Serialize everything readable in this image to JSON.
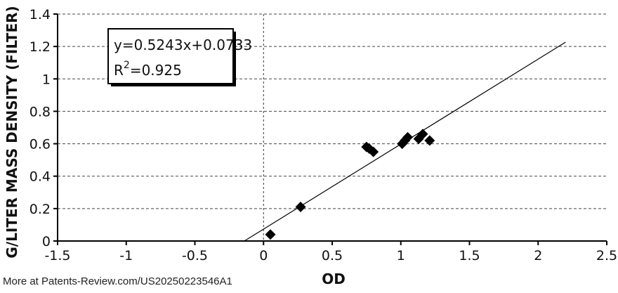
{
  "chart_data": {
    "type": "scatter",
    "xlabel": "OD",
    "ylabel": "G/LITER MASS DENSITY (FILTER)",
    "xlim": [
      -1.5,
      2.5
    ],
    "ylim": [
      0,
      1.4
    ],
    "x_ticks": [
      "-1.5",
      "-1",
      "-0.5",
      "0",
      "0.5",
      "1",
      "1.5",
      "2",
      "2.5"
    ],
    "y_ticks": [
      "0",
      "0.2",
      "0.4",
      "0.6",
      "0.8",
      "1",
      "1.2",
      "1.4"
    ],
    "grid": {
      "horizontal": true,
      "vertical": false,
      "style": "dashed"
    },
    "marker": "diamond",
    "marker_color": "#000000",
    "points": [
      {
        "x": 0.05,
        "y": 0.04
      },
      {
        "x": 0.27,
        "y": 0.21
      },
      {
        "x": 0.75,
        "y": 0.58
      },
      {
        "x": 0.77,
        "y": 0.57
      },
      {
        "x": 0.8,
        "y": 0.55
      },
      {
        "x": 1.01,
        "y": 0.6
      },
      {
        "x": 1.03,
        "y": 0.62
      },
      {
        "x": 1.05,
        "y": 0.64
      },
      {
        "x": 1.13,
        "y": 0.63
      },
      {
        "x": 1.16,
        "y": 0.66
      },
      {
        "x": 1.21,
        "y": 0.62
      }
    ],
    "trendline": {
      "slope": 0.5243,
      "intercept": 0.0733,
      "x_range": [
        -0.14,
        2.2
      ],
      "equation": "y=0.5243x+0.0733",
      "r2_prefix": "R",
      "r2_sup": "2",
      "r2_value": "=0.925"
    }
  },
  "watermark": "More at Patents-Review.com/US20250223546A1"
}
